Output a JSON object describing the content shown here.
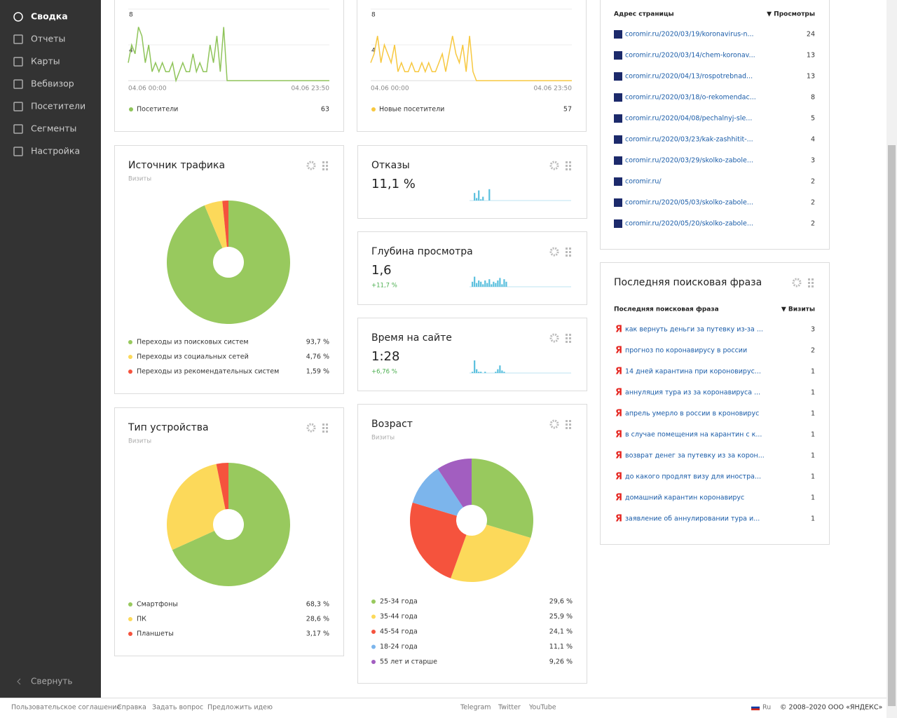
{
  "sidebar": {
    "items": [
      "Сводка",
      "Отчеты",
      "Карты",
      "Вебвизор",
      "Посетители",
      "Сегменты",
      "Настройка"
    ],
    "collapse": "Свернуть"
  },
  "visitors": {
    "type": "line",
    "ylim": [
      0,
      8
    ],
    "yticks": [
      8,
      4
    ],
    "x_labels": [
      "04.06 00:00",
      "04.06 23:50"
    ],
    "series": [
      {
        "name": "Посетители",
        "color": "#8fc45a",
        "values": [
          2,
          4,
          3,
          6,
          5,
          2,
          4,
          1,
          2,
          1,
          2,
          1,
          1,
          2,
          0,
          1,
          2,
          1,
          1,
          3,
          1,
          2,
          1,
          1,
          4,
          2,
          5,
          1,
          6,
          0,
          0,
          0,
          0,
          0,
          0,
          0,
          0,
          0,
          0,
          0,
          0,
          0,
          0,
          0,
          0,
          0,
          0,
          0,
          0,
          0,
          0,
          0,
          0,
          0,
          0,
          0,
          0,
          0,
          0,
          0
        ]
      }
    ],
    "total": 63
  },
  "new_visitors": {
    "type": "line",
    "ylim": [
      0,
      8
    ],
    "yticks": [
      8,
      4
    ],
    "x_labels": [
      "04.06 00:00",
      "04.06 23:50"
    ],
    "series": [
      {
        "name": "Новые посетители",
        "color": "#f7c840",
        "values": [
          2,
          3,
          5,
          2,
          4,
          3,
          2,
          4,
          1,
          2,
          1,
          1,
          2,
          1,
          1,
          2,
          1,
          2,
          1,
          1,
          2,
          3,
          1,
          3,
          5,
          3,
          2,
          4,
          1,
          5,
          1,
          0,
          0,
          0,
          0,
          0,
          0,
          0,
          0,
          0,
          0,
          0,
          0,
          0,
          0,
          0,
          0,
          0,
          0,
          0,
          0,
          0,
          0,
          0,
          0,
          0,
          0,
          0,
          0,
          0
        ]
      }
    ],
    "total": 57
  },
  "pages": {
    "columns": [
      "Адрес страницы",
      "▼ Просмотры"
    ],
    "rows": [
      [
        "coromir.ru/2020/03/19/koronavirus-n...",
        24
      ],
      [
        "coromir.ru/2020/03/14/chem-koronav...",
        13
      ],
      [
        "coromir.ru/2020/04/13/rospotrebnad...",
        13
      ],
      [
        "coromir.ru/2020/03/18/o-rekomendac...",
        8
      ],
      [
        "coromir.ru/2020/04/08/pechalnyj-sle...",
        5
      ],
      [
        "coromir.ru/2020/03/23/kak-zashhitit-...",
        4
      ],
      [
        "coromir.ru/2020/03/29/skolko-zabole...",
        3
      ],
      [
        "coromir.ru/",
        2
      ],
      [
        "coromir.ru/2020/05/03/skolko-zabole...",
        2
      ],
      [
        "coromir.ru/2020/05/20/skolko-zabole...",
        2
      ]
    ]
  },
  "traffic": {
    "type": "pie",
    "title": "Источник трафика",
    "subtitle": "Визиты",
    "categories": [
      "Переходы из поисковых систем",
      "Переходы из социальных сетей",
      "Переходы из рекомендательных систем"
    ],
    "values": [
      93.7,
      4.76,
      1.59
    ],
    "value_labels": [
      "93,7 %",
      "4,76 %",
      "1,59 %"
    ],
    "colors": [
      "#98c95e",
      "#fcd95a",
      "#f5533d"
    ]
  },
  "bounce": {
    "title": "Отказы",
    "value": "11,1 %",
    "spark": {
      "type": "bar",
      "ylim": [
        0,
        10
      ],
      "values": [
        0,
        0,
        6,
        2,
        8,
        1,
        3,
        0,
        0,
        9,
        0,
        0,
        0,
        0,
        0,
        0,
        0,
        0,
        0,
        0,
        0,
        0,
        0,
        0,
        0,
        0,
        0,
        0,
        0,
        0,
        0,
        0,
        0,
        0,
        0,
        0,
        0,
        0,
        0,
        0,
        0,
        0,
        0,
        0,
        0,
        0,
        0,
        0
      ]
    }
  },
  "depth": {
    "title": "Глубина просмотра",
    "value": "1,6",
    "change": "+11,7 %",
    "spark": {
      "type": "bar",
      "ylim": [
        0,
        10
      ],
      "values": [
        0,
        4,
        8,
        3,
        5,
        4,
        2,
        5,
        3,
        6,
        2,
        4,
        3,
        5,
        7,
        2,
        6,
        4,
        0,
        0,
        0,
        0,
        0,
        0,
        0,
        0,
        0,
        0,
        0,
        0,
        0,
        0,
        0,
        0,
        0,
        0,
        0,
        0,
        0,
        0,
        0,
        0,
        0,
        0,
        0,
        0,
        0,
        0
      ]
    }
  },
  "time": {
    "title": "Время на сайте",
    "value": "1:28",
    "change": "+6,76 %",
    "spark": {
      "type": "bar",
      "ylim": [
        0,
        10
      ],
      "values": [
        0,
        1,
        10,
        3,
        1,
        1,
        0,
        1,
        0,
        0,
        0,
        0,
        1,
        3,
        6,
        2,
        1,
        0,
        0,
        0,
        0,
        0,
        0,
        0,
        0,
        0,
        0,
        0,
        0,
        0,
        0,
        0,
        0,
        0,
        0,
        0,
        0,
        0,
        0,
        0,
        0,
        0,
        0,
        0,
        0,
        0,
        0,
        0
      ]
    }
  },
  "device": {
    "type": "pie",
    "title": "Тип устройства",
    "subtitle": "Визиты",
    "categories": [
      "Смартфоны",
      "ПК",
      "Планшеты"
    ],
    "values": [
      68.3,
      28.6,
      3.17
    ],
    "value_labels": [
      "68,3 %",
      "28,6 %",
      "3,17 %"
    ],
    "colors": [
      "#98c95e",
      "#fcd95a",
      "#f5533d"
    ]
  },
  "age": {
    "type": "pie",
    "title": "Возраст",
    "subtitle": "Визиты",
    "categories": [
      "25-34 года",
      "35-44 года",
      "45-54 года",
      "18-24 года",
      "55 лет и старше"
    ],
    "values": [
      29.6,
      25.9,
      24.1,
      11.1,
      9.26
    ],
    "value_labels": [
      "29,6 %",
      "25,9 %",
      "24,1 %",
      "11,1 %",
      "9,26 %"
    ],
    "colors": [
      "#98c95e",
      "#fcd95a",
      "#f5533d",
      "#7cb5ec",
      "#a25ec0"
    ]
  },
  "search": {
    "title": "Последняя поисковая фраза",
    "columns": [
      "Последняя поисковая фраза",
      "▼ Визиты"
    ],
    "rows": [
      [
        "как вернуть деньги за путевку из-за ...",
        3
      ],
      [
        "прогноз по коронавирусу в россии",
        2
      ],
      [
        "14 дней карантина при короновирус...",
        1
      ],
      [
        "аннуляция тура из за коронавируса ...",
        1
      ],
      [
        "апрель умерло в россии в кроновирус",
        1
      ],
      [
        "в случае помещения на карантин с к...",
        1
      ],
      [
        "возврат денег за путевку из за корон...",
        1
      ],
      [
        "до какого продлят визу для иностра...",
        1
      ],
      [
        "домашний карантин коронавирус",
        1
      ],
      [
        "заявление об аннулировании тура и...",
        1
      ]
    ]
  },
  "footer": {
    "links": [
      "Пользовательское соглашение",
      "Справка",
      "Задать вопрос",
      "Предложить идею"
    ],
    "social": [
      "Telegram",
      "Twitter",
      "YouTube"
    ],
    "lang": "Ru",
    "copyright": "© 2008–2020 ООО «ЯНДЕКС»"
  }
}
